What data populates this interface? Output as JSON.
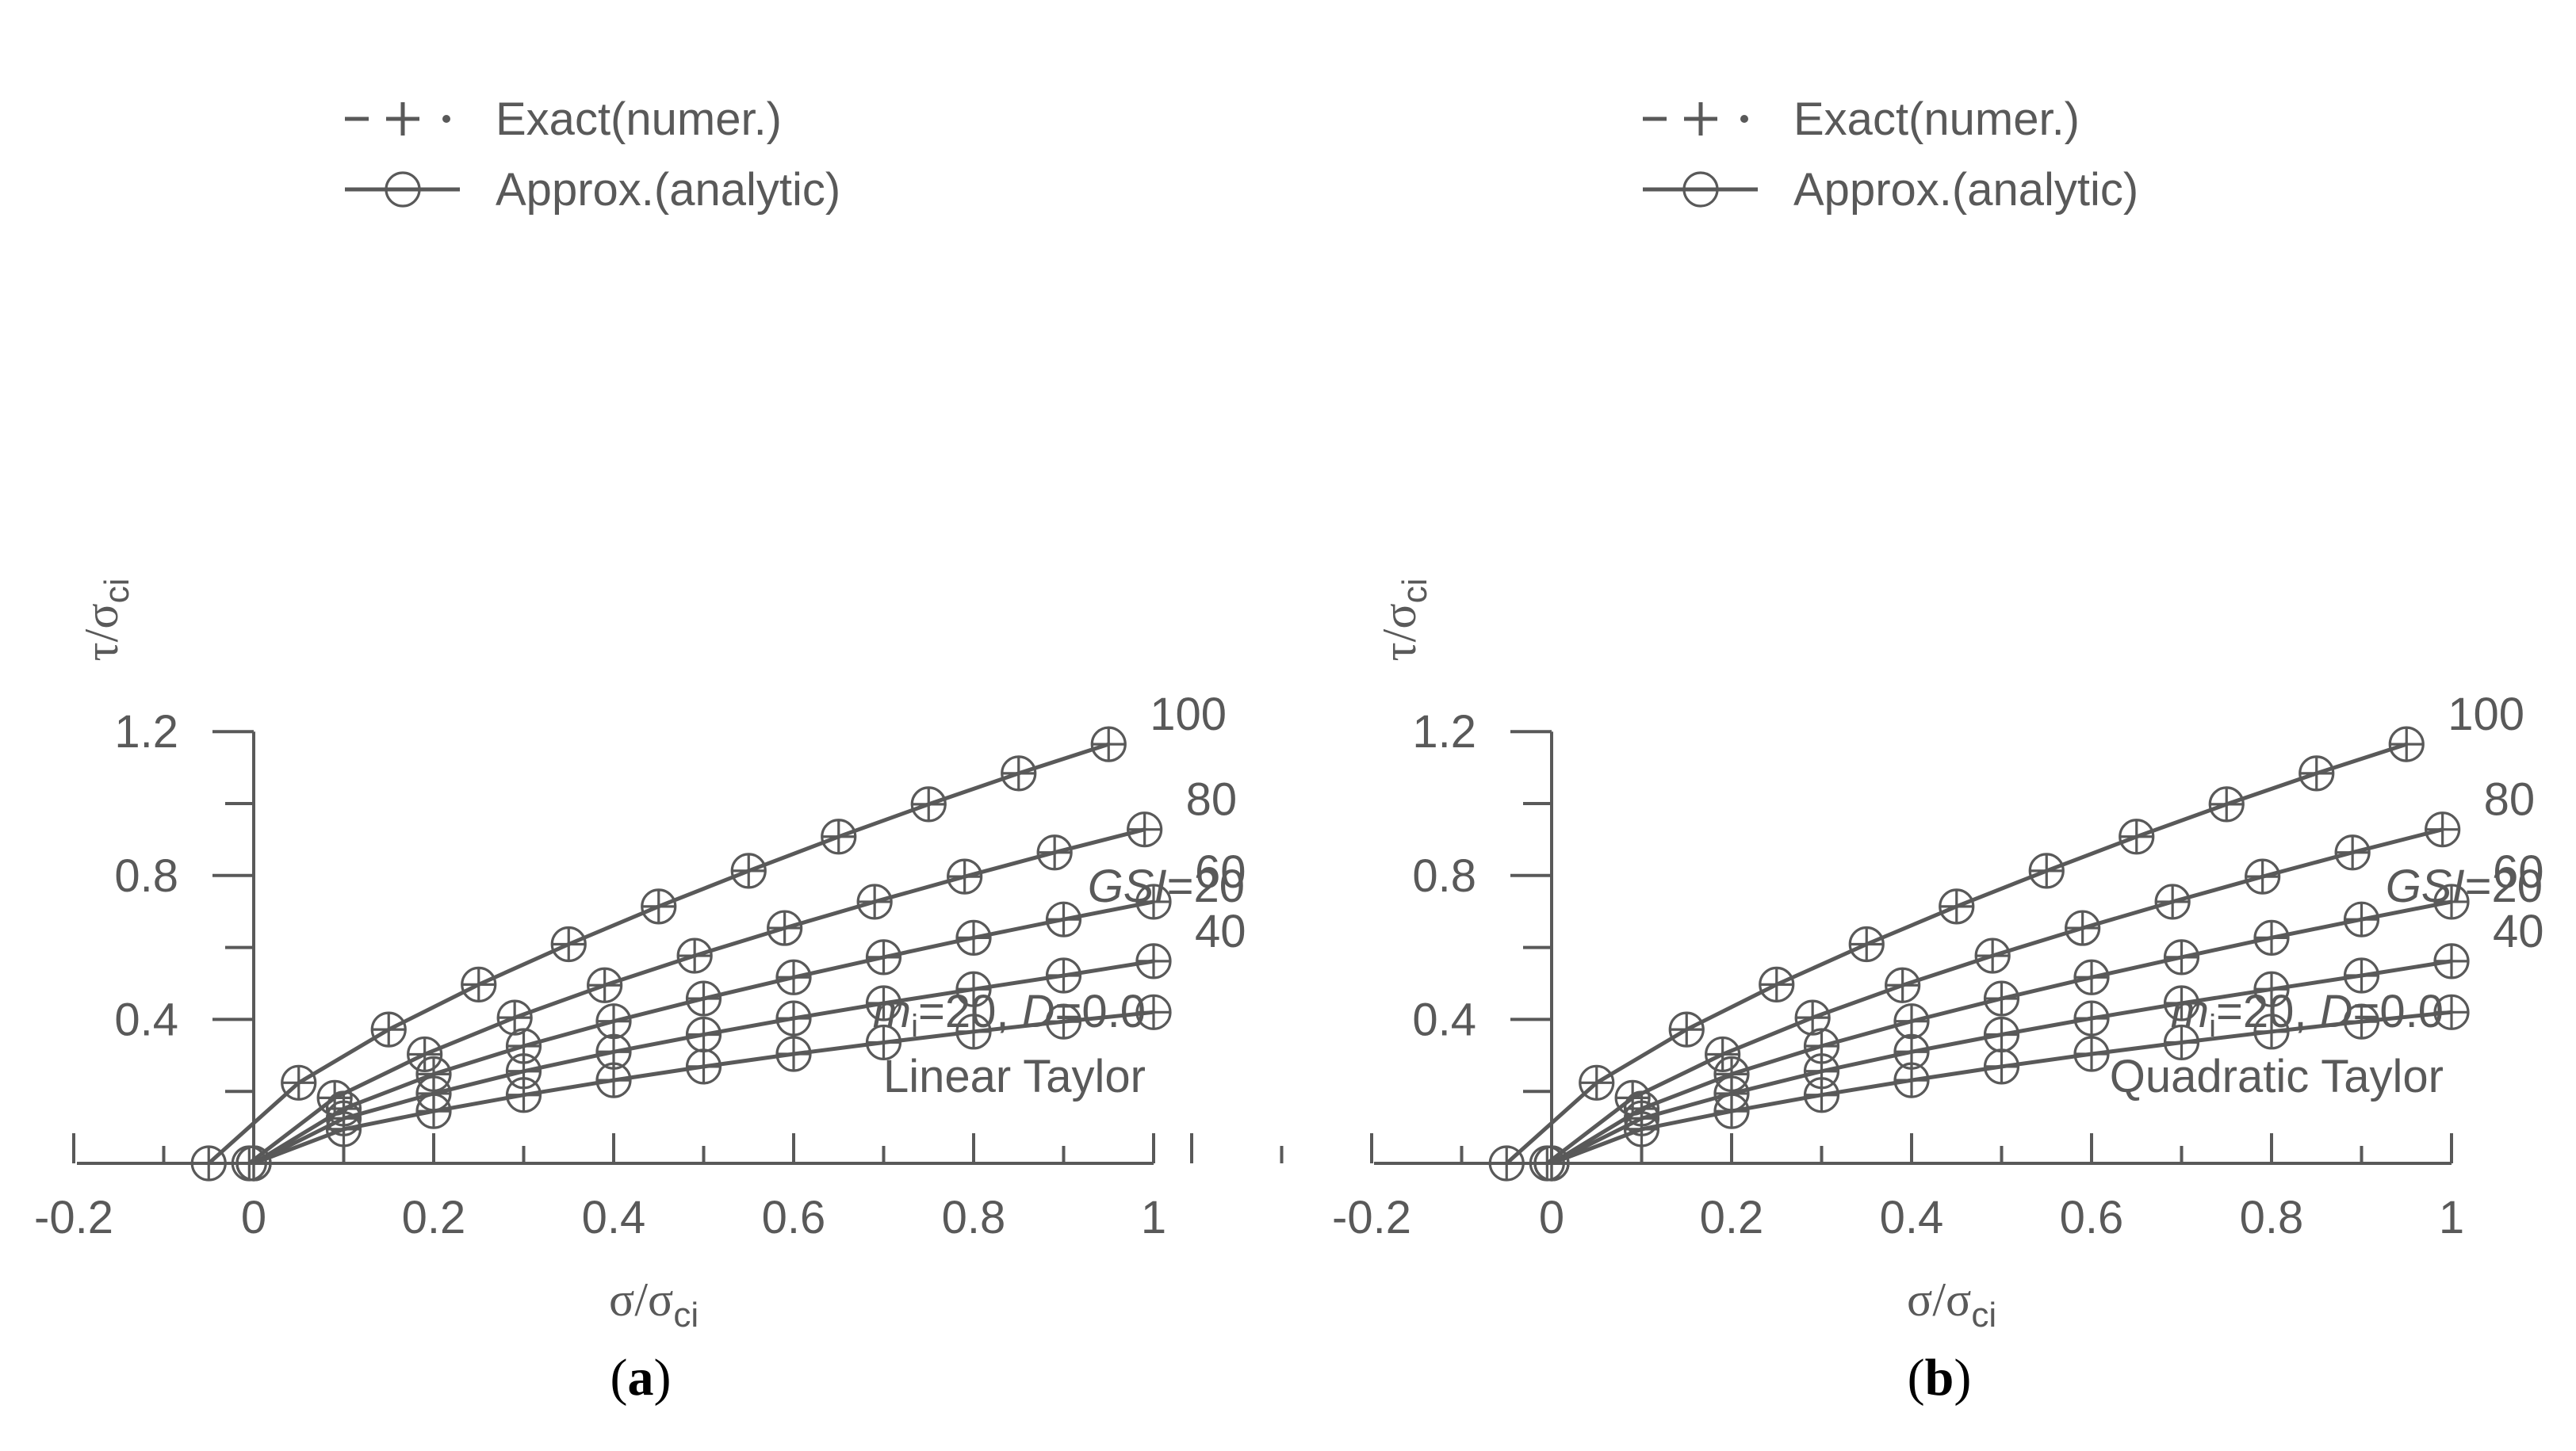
{
  "figure": {
    "description_labels": [
      "(a)",
      "(b)"
    ]
  },
  "chart_data": [
    {
      "type": "line",
      "panel_label": "(a)",
      "panel_letter": "a",
      "method": "Linear Taylor",
      "xlabel": "σ/σci",
      "ylabel": "τ/σci",
      "xlim": [
        -0.2,
        1.0
      ],
      "ylim": [
        -0.04,
        1.2
      ],
      "x_ticks": [
        -0.2,
        0,
        0.2,
        0.4,
        0.6,
        0.8,
        1
      ],
      "x_tick_labels": [
        "-0.2",
        "0",
        "0.2",
        "0.4",
        "0.6",
        "0.8",
        "1"
      ],
      "y_ticks": [
        0.4,
        0.8,
        1.2
      ],
      "y_tick_labels": [
        "0.4",
        "0.8",
        "1.2"
      ],
      "legend": [
        "Exact(numer.)",
        "Approx.(analytic)"
      ],
      "annotations": {
        "mi": "m",
        "mi_sub": "i",
        "mi_eq": "=20, ",
        "d": "D",
        "d_eq": "=0.0",
        "gsi": "GSI",
        "gsi_eq": "=20"
      },
      "series": [
        {
          "name": "GSI=100",
          "label": "100",
          "x": [
            -0.05,
            0.05,
            0.15,
            0.25,
            0.35,
            0.45,
            0.55,
            0.65,
            0.75,
            0.85,
            0.95
          ],
          "y": [
            0.0,
            0.224,
            0.372,
            0.497,
            0.609,
            0.714,
            0.813,
            0.908,
            0.998,
            1.084,
            1.165
          ]
        },
        {
          "name": "GSI=80",
          "label": "80",
          "x": [
            -0.005,
            0.09,
            0.19,
            0.29,
            0.39,
            0.49,
            0.59,
            0.69,
            0.79,
            0.89,
            0.99
          ],
          "y": [
            0.0,
            0.182,
            0.303,
            0.405,
            0.495,
            0.577,
            0.654,
            0.727,
            0.797,
            0.864,
            0.928
          ]
        },
        {
          "name": "GSI=60",
          "label": "60",
          "x": [
            0.0,
            0.1,
            0.2,
            0.3,
            0.4,
            0.5,
            0.6,
            0.7,
            0.8,
            0.9,
            1.0
          ],
          "y": [
            0.0,
            0.152,
            0.248,
            0.326,
            0.395,
            0.458,
            0.517,
            0.573,
            0.627,
            0.678,
            0.727
          ]
        },
        {
          "name": "GSI=40",
          "label": "40",
          "x": [
            0.0,
            0.1,
            0.2,
            0.3,
            0.4,
            0.5,
            0.6,
            0.7,
            0.8,
            0.9,
            1.0
          ],
          "y": [
            0.0,
            0.125,
            0.194,
            0.256,
            0.31,
            0.358,
            0.403,
            0.445,
            0.484,
            0.522,
            0.562
          ]
        },
        {
          "name": "GSI=20",
          "label": "",
          "x": [
            0.0,
            0.1,
            0.2,
            0.3,
            0.4,
            0.5,
            0.6,
            0.7,
            0.8,
            0.9,
            1.0
          ],
          "y": [
            0.0,
            0.095,
            0.145,
            0.19,
            0.231,
            0.269,
            0.304,
            0.336,
            0.366,
            0.394,
            0.42
          ]
        }
      ]
    },
    {
      "type": "line",
      "panel_label": "(b)",
      "panel_letter": "b",
      "method": "Quadratic Taylor",
      "xlabel": "σ/σci",
      "ylabel": "τ/σci",
      "xlim": [
        -0.2,
        1.0
      ],
      "ylim": [
        -0.04,
        1.2
      ],
      "x_ticks": [
        -0.2,
        0,
        0.2,
        0.4,
        0.6,
        0.8,
        1
      ],
      "x_tick_labels": [
        "-0.2",
        "0",
        "0.2",
        "0.4",
        "0.6",
        "0.8",
        "1"
      ],
      "y_ticks": [
        0.4,
        0.8,
        1.2
      ],
      "y_tick_labels": [
        "0.4",
        "0.8",
        "1.2"
      ],
      "legend": [
        "Exact(numer.)",
        "Approx.(analytic)"
      ],
      "annotations": {
        "mi": "m",
        "mi_sub": "i",
        "mi_eq": "=20, ",
        "d": "D",
        "d_eq": "=0.0",
        "gsi": "GSI",
        "gsi_eq": "=20"
      },
      "series": [
        {
          "name": "GSI=100",
          "label": "100",
          "x": [
            -0.05,
            0.05,
            0.15,
            0.25,
            0.35,
            0.45,
            0.55,
            0.65,
            0.75,
            0.85,
            0.95
          ],
          "y": [
            0.0,
            0.224,
            0.372,
            0.497,
            0.609,
            0.714,
            0.813,
            0.908,
            0.998,
            1.084,
            1.165
          ]
        },
        {
          "name": "GSI=80",
          "label": "80",
          "x": [
            -0.005,
            0.09,
            0.19,
            0.29,
            0.39,
            0.49,
            0.59,
            0.69,
            0.79,
            0.89,
            0.99
          ],
          "y": [
            0.0,
            0.182,
            0.303,
            0.405,
            0.495,
            0.577,
            0.654,
            0.727,
            0.797,
            0.864,
            0.928
          ]
        },
        {
          "name": "GSI=60",
          "label": "60",
          "x": [
            0.0,
            0.1,
            0.2,
            0.3,
            0.4,
            0.5,
            0.6,
            0.7,
            0.8,
            0.9,
            1.0
          ],
          "y": [
            0.0,
            0.152,
            0.248,
            0.326,
            0.395,
            0.458,
            0.517,
            0.573,
            0.627,
            0.678,
            0.727
          ]
        },
        {
          "name": "GSI=40",
          "label": "40",
          "x": [
            0.0,
            0.1,
            0.2,
            0.3,
            0.4,
            0.5,
            0.6,
            0.7,
            0.8,
            0.9,
            1.0
          ],
          "y": [
            0.0,
            0.125,
            0.194,
            0.256,
            0.31,
            0.358,
            0.403,
            0.445,
            0.484,
            0.522,
            0.562
          ]
        },
        {
          "name": "GSI=20",
          "label": "",
          "x": [
            0.0,
            0.1,
            0.2,
            0.3,
            0.4,
            0.5,
            0.6,
            0.7,
            0.8,
            0.9,
            1.0
          ],
          "y": [
            0.0,
            0.095,
            0.145,
            0.19,
            0.231,
            0.269,
            0.304,
            0.336,
            0.366,
            0.394,
            0.42
          ]
        }
      ]
    }
  ]
}
